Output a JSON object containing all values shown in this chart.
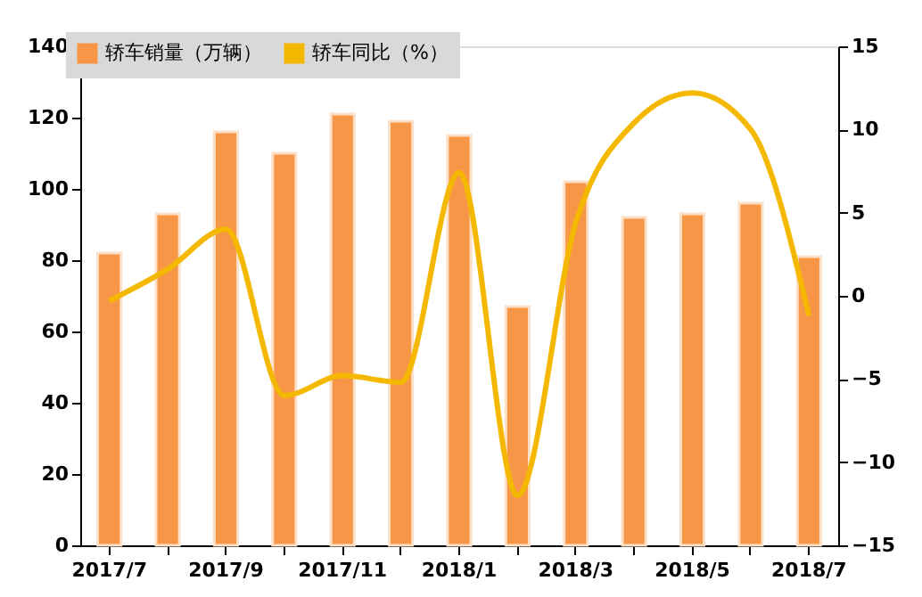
{
  "chart_data": {
    "type": "bar",
    "categories": [
      "2017/7",
      null,
      "2017/9",
      null,
      "2017/11",
      null,
      "2018/1",
      null,
      "2018/3",
      null,
      "2018/5",
      null,
      "2018/7"
    ],
    "series": [
      {
        "name": "轿车销量（万辆）",
        "color": "#f79646",
        "values": [
          82,
          93,
          116,
          110,
          121,
          119,
          115,
          67,
          102,
          92,
          93,
          96,
          81
        ]
      },
      {
        "name": "轿车同比（%）",
        "type": "line",
        "axis": "y2",
        "color": "#f5b800",
        "values": [
          -0.3,
          1.6,
          4.0,
          -6.0,
          -4.8,
          -5.2,
          7.4,
          -12.0,
          4.4,
          10.4,
          12.2,
          10.0,
          -1.2
        ]
      }
    ],
    "ylim": [
      0,
      140
    ],
    "yticks": [
      0,
      20,
      40,
      60,
      80,
      100,
      120,
      140
    ],
    "y2lim": [
      -15,
      15
    ],
    "y2ticks": [
      -15,
      -10,
      -5,
      0,
      5,
      10,
      15
    ],
    "legend": "top left",
    "grid": false
  }
}
